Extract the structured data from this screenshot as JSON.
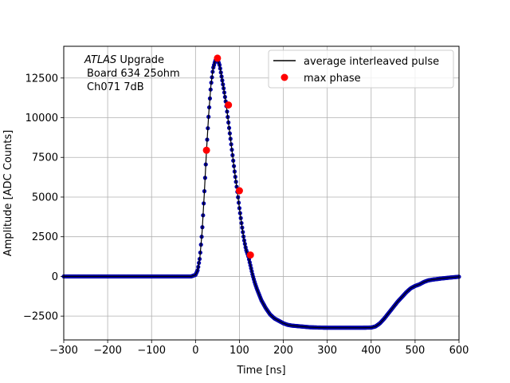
{
  "chart_data": {
    "type": "scatter",
    "xlabel": "Time [ns]",
    "ylabel": "Amplitude [ADC Counts]",
    "xlim": [
      -300,
      600
    ],
    "ylim": [
      -4000,
      14500
    ],
    "xticks": [
      -300,
      -200,
      -100,
      0,
      100,
      200,
      300,
      400,
      500,
      600
    ],
    "yticks": [
      -2500,
      0,
      2500,
      5000,
      7500,
      10000,
      12500
    ],
    "xtick_labels": [
      "−300",
      "−200",
      "−100",
      "0",
      "100",
      "200",
      "300",
      "400",
      "500",
      "600"
    ],
    "ytick_labels": [
      "−2500",
      "0",
      "2500",
      "5000",
      "7500",
      "10000",
      "12500"
    ],
    "grid": true,
    "legend_position": "top-right",
    "annotation": {
      "line1_italic": "ATLAS",
      "line1_rest": " Upgrade",
      "line2": "Board 634 25ohm",
      "line3": "Ch071 7dB"
    },
    "series": [
      {
        "name": "average interleaved pulse",
        "kind": "line",
        "color": "#000000",
        "marker_color": "#0000aa",
        "x": [
          -300,
          -250,
          -200,
          -150,
          -100,
          -50,
          -10,
          0,
          5,
          10,
          15,
          20,
          25,
          30,
          35,
          40,
          45,
          50,
          55,
          60,
          65,
          70,
          75,
          80,
          85,
          90,
          95,
          100,
          105,
          110,
          115,
          120,
          125,
          130,
          135,
          140,
          150,
          160,
          170,
          180,
          190,
          200,
          210,
          220,
          240,
          260,
          280,
          300,
          320,
          340,
          360,
          380,
          400,
          410,
          420,
          430,
          440,
          450,
          460,
          470,
          480,
          490,
          500,
          510,
          520,
          530,
          540,
          560,
          580,
          600
        ],
        "y": [
          0,
          0,
          0,
          0,
          0,
          0,
          0,
          100,
          400,
          1200,
          2800,
          5200,
          7900,
          10200,
          12000,
          13100,
          13600,
          13700,
          13300,
          12500,
          11700,
          10800,
          9700,
          8600,
          7500,
          6400,
          5400,
          4300,
          3300,
          2400,
          1700,
          1300,
          700,
          100,
          -400,
          -800,
          -1500,
          -2000,
          -2400,
          -2650,
          -2800,
          -2950,
          -3050,
          -3100,
          -3150,
          -3200,
          -3220,
          -3230,
          -3230,
          -3230,
          -3230,
          -3230,
          -3220,
          -3150,
          -2950,
          -2650,
          -2300,
          -1950,
          -1600,
          -1300,
          -1000,
          -750,
          -600,
          -500,
          -350,
          -250,
          -200,
          -130,
          -70,
          -20
        ]
      },
      {
        "name": "max phase",
        "kind": "scatter",
        "color": "#ff0000",
        "x": [
          25,
          50,
          75,
          100,
          125
        ],
        "y": [
          7950,
          13750,
          10800,
          5400,
          1350
        ]
      }
    ]
  }
}
